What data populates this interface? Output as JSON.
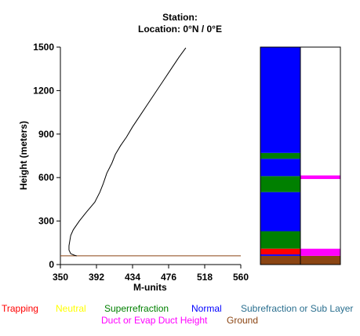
{
  "header": {
    "station_label": "Station:",
    "location_label": "Location:   0°N /   0°E"
  },
  "legend": {
    "items": [
      {
        "label": "Trapping",
        "color": "#ff0000"
      },
      {
        "label": "Neutral",
        "color": "#ffff00"
      },
      {
        "label": "Superrefraction",
        "color": "#008000"
      },
      {
        "label": "Normal",
        "color": "#0000ff"
      },
      {
        "label": "Subrefraction or Sub Layer",
        "color": "#2a6f8f"
      },
      {
        "label": "Duct or Evap Duct Height",
        "color": "#ff00ff"
      },
      {
        "label": "Ground",
        "color": "#8b4513"
      }
    ]
  },
  "chart_data": {
    "type": "line",
    "title": "",
    "xlabel": "M-units",
    "ylabel": "Height (meters)",
    "xlim": [
      350,
      560
    ],
    "ylim": [
      0,
      1500
    ],
    "xticks": [
      350,
      392,
      434,
      476,
      518,
      560
    ],
    "yticks": [
      0,
      300,
      600,
      900,
      1200,
      1500
    ],
    "series": [
      {
        "x": [
          369,
          366,
          362,
          360,
          360,
          362,
          365,
          372,
          380,
          390,
          396,
          400,
          404,
          410,
          414,
          420,
          427,
          434,
          443,
          452,
          461,
          470,
          479,
          488,
          496
        ],
        "y": [
          60,
          65,
          75,
          100,
          130,
          200,
          240,
          300,
          360,
          430,
          500,
          560,
          630,
          700,
          760,
          820,
          880,
          950,
          1030,
          1110,
          1190,
          1270,
          1350,
          1430,
          1495
        ]
      }
    ],
    "reference_line": {
      "y": 60,
      "color": "#8b4513"
    },
    "layer_bars": {
      "left": [
        {
          "from": 0,
          "to": 60,
          "color": "#8b4513"
        },
        {
          "from": 60,
          "to": 70,
          "color": "#0000ff"
        },
        {
          "from": 70,
          "to": 110,
          "color": "#ff0000"
        },
        {
          "from": 110,
          "to": 230,
          "color": "#008000"
        },
        {
          "from": 230,
          "to": 500,
          "color": "#0000ff"
        },
        {
          "from": 500,
          "to": 610,
          "color": "#008000"
        },
        {
          "from": 610,
          "to": 730,
          "color": "#0000ff"
        },
        {
          "from": 730,
          "to": 770,
          "color": "#008000"
        },
        {
          "from": 770,
          "to": 1500,
          "color": "#0000ff"
        }
      ],
      "right": [
        {
          "from": 0,
          "to": 60,
          "color": "#8b4513"
        },
        {
          "from": 60,
          "to": 110,
          "color": "#ff00ff"
        },
        {
          "from": 110,
          "to": 590,
          "color": "#ffffff"
        },
        {
          "from": 590,
          "to": 615,
          "color": "#ff00ff"
        },
        {
          "from": 615,
          "to": 1500,
          "color": "#ffffff"
        }
      ]
    }
  }
}
